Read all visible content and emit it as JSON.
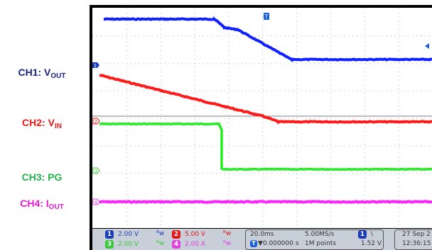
{
  "labels": {
    "ch1": {
      "main": "CH1: V",
      "sub": "OUT",
      "color": "#1a237e"
    },
    "ch2": {
      "main": "CH2: V",
      "sub": "IN",
      "color": "#e31b1b"
    },
    "ch3": {
      "main": "CH3: PG",
      "sub": "",
      "color": "#22b14c"
    },
    "ch4": {
      "main": "CH4: I",
      "sub": "OUT",
      "color": "#e81ccf"
    }
  },
  "trace_colors": {
    "ch1": "#1020ff",
    "ch2": "#ff1a1a",
    "ch3": "#22ee22",
    "ch4": "#ff22ff"
  },
  "channels": [
    {
      "num": "1",
      "scale": "2.00 V",
      "color": "#1b3db8"
    },
    {
      "num": "2",
      "scale": "5.00 V",
      "color": "#e01818"
    },
    {
      "num": "3",
      "scale": "2.00 V",
      "color": "#38c838"
    },
    {
      "num": "4",
      "scale": "2.00 A",
      "color": "#e040e0"
    }
  ],
  "bw_symbol": "ᴮw",
  "timebase": {
    "scale": "20.0ms",
    "offset": "▼0.000000 s",
    "sample_rate": "5.00MS/s",
    "record": "1M points"
  },
  "trigger": {
    "source": "1",
    "slope": "\\",
    "level": "1.52 V"
  },
  "datetime": {
    "date": "27 Sep 2",
    "time": "12:36:15"
  },
  "markers": {
    "trigger_pos": "T"
  }
}
